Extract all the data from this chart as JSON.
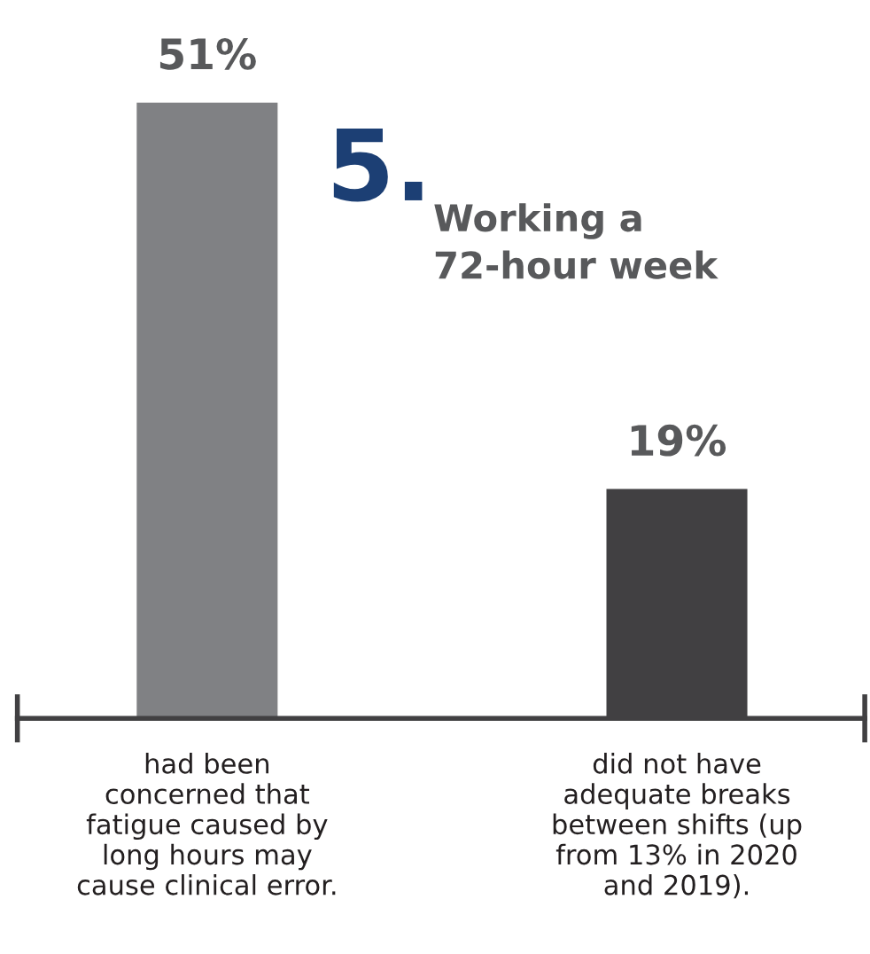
{
  "chart_data": {
    "type": "bar",
    "title": "5.",
    "subtitle": "Working a\n72-hour week",
    "categories": [
      "had been\nconcerned that\nfatigue caused by\nlong hours may\ncause clinical error.",
      "did not have\nadequate breaks\nbetween shifts (up\nfrom 13% in 2020\nand 2019)."
    ],
    "values": [
      51,
      19
    ],
    "colors": [
      "#808184",
      "#414042"
    ],
    "value_labels": [
      "51%",
      "19%"
    ],
    "grid": false,
    "legend": false
  }
}
